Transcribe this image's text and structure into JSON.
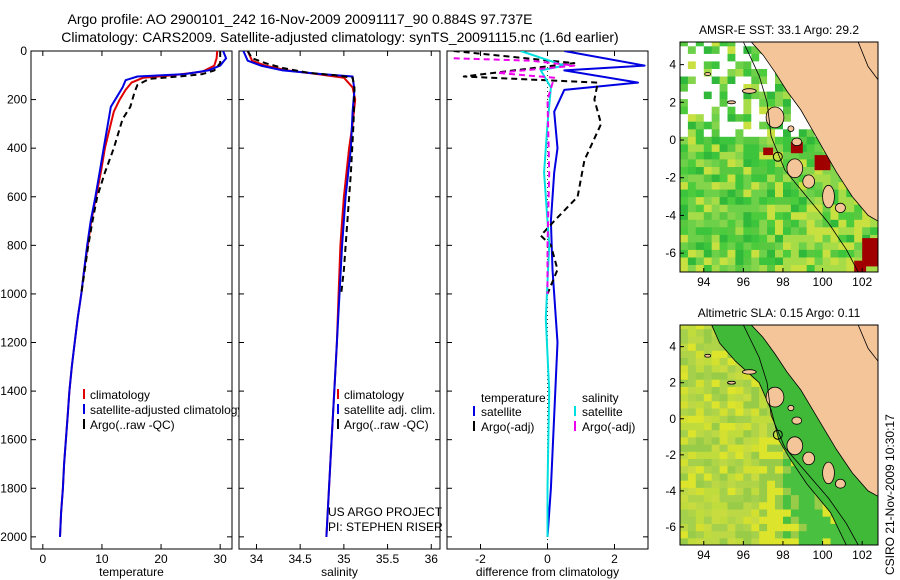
{
  "colors": {
    "clim": "#e00000",
    "sat": "#0000e0",
    "argo": "#000000",
    "sal_sat": "#00e0e0",
    "sal_argo": "#ee00ee",
    "land": "#f5c59a",
    "sst_green": "#3cc43c",
    "sst_yellow": "#d8e040",
    "sst_red": "#a00000",
    "sla_green": "#4ac040",
    "sla_yellow": "#d4e030"
  },
  "header": {
    "line1": "Argo profile: AO 2900101_242 16-Nov-2009 20091117_90 0.884S 97.737E",
    "line2": "Climatology: CARS2009. Satellite-adjusted climatology: synTS_20091115.nc (1.6d earlier)"
  },
  "side_label": "CSIRO 21-Nov-2009 10:30:17",
  "chart_data": [
    {
      "id": "temperature",
      "type": "line",
      "xlabel": "temperature",
      "ylabel": "",
      "xlim": [
        -2,
        32
      ],
      "ylim": [
        2050,
        0
      ],
      "xticks": [
        0,
        10,
        20,
        30
      ],
      "yticks": [
        0,
        200,
        400,
        600,
        800,
        1000,
        1200,
        1400,
        1600,
        1800,
        2000
      ],
      "legend": [
        "climatology",
        "satellite-adjusted climatology",
        "Argo(..raw -QC)"
      ],
      "series": [
        {
          "name": "climatology",
          "color": "#e00000",
          "dash": "",
          "points": [
            [
              29.5,
              0
            ],
            [
              29.4,
              30
            ],
            [
              29,
              60
            ],
            [
              27,
              85
            ],
            [
              22,
              100
            ],
            [
              17,
              110
            ],
            [
              15,
              130
            ],
            [
              14,
              160
            ],
            [
              13,
              200
            ],
            [
              12,
              250
            ],
            [
              11.5,
              300
            ],
            [
              10.5,
              400
            ],
            [
              9.8,
              500
            ],
            [
              9,
              600
            ],
            [
              8.2,
              700
            ],
            [
              7.6,
              800
            ],
            [
              7,
              900
            ],
            [
              6.5,
              1000
            ],
            [
              5.9,
              1100
            ],
            [
              5.4,
              1200
            ],
            [
              4.9,
              1300
            ],
            [
              4.5,
              1400
            ],
            [
              4.2,
              1500
            ],
            [
              3.9,
              1600
            ],
            [
              3.6,
              1700
            ],
            [
              3.4,
              1800
            ],
            [
              3.1,
              1900
            ],
            [
              2.9,
              2000
            ]
          ]
        },
        {
          "name": "satellite",
          "color": "#0000e0",
          "dash": "",
          "points": [
            [
              30.5,
              0
            ],
            [
              31,
              30
            ],
            [
              30,
              60
            ],
            [
              28,
              80
            ],
            [
              24,
              95
            ],
            [
              16,
              105
            ],
            [
              14,
              120
            ],
            [
              13.5,
              150
            ],
            [
              12.5,
              190
            ],
            [
              11.5,
              230
            ],
            [
              11,
              300
            ],
            [
              10.3,
              400
            ],
            [
              9.6,
              500
            ],
            [
              8.9,
              600
            ],
            [
              8.1,
              700
            ],
            [
              7.5,
              800
            ],
            [
              7,
              900
            ],
            [
              6.5,
              1000
            ],
            [
              5.9,
              1100
            ],
            [
              5.4,
              1200
            ],
            [
              4.9,
              1300
            ],
            [
              4.5,
              1400
            ],
            [
              4.2,
              1500
            ],
            [
              3.9,
              1600
            ],
            [
              3.6,
              1700
            ],
            [
              3.4,
              1800
            ],
            [
              3.1,
              1900
            ],
            [
              2.9,
              2000
            ]
          ]
        },
        {
          "name": "Argo",
          "color": "#000000",
          "dash": "6,4",
          "points": [
            [
              30,
              0
            ],
            [
              30,
              50
            ],
            [
              29,
              80
            ],
            [
              27,
              95
            ],
            [
              23,
              105
            ],
            [
              18,
              115
            ],
            [
              16,
              140
            ],
            [
              15.5,
              170
            ],
            [
              14.8,
              230
            ],
            [
              13.5,
              280
            ],
            [
              12,
              400
            ],
            [
              10.5,
              500
            ],
            [
              9.2,
              600
            ],
            [
              8.4,
              700
            ],
            [
              7.7,
              800
            ],
            [
              7.1,
              900
            ],
            [
              6.5,
              1000
            ]
          ]
        }
      ]
    },
    {
      "id": "salinity",
      "type": "line",
      "xlabel": "salinity",
      "ylabel": "",
      "xlim": [
        33.8,
        36.1
      ],
      "ylim": [
        2050,
        0
      ],
      "xticks": [
        34,
        34.5,
        35,
        35.5,
        36
      ],
      "xtick_labels": [
        "34",
        "34.5",
        "35",
        "35.5",
        "36"
      ],
      "legend": [
        "climatology",
        "satellite adj. clim.",
        "Argo(..raw -QC)"
      ],
      "annotation": [
        "US ARGO PROJECT",
        "PI: STEPHEN RISER"
      ],
      "series": [
        {
          "name": "climatology",
          "color": "#e00000",
          "dash": "",
          "points": [
            [
              33.9,
              0
            ],
            [
              33.95,
              40
            ],
            [
              34.1,
              60
            ],
            [
              34.35,
              80
            ],
            [
              34.7,
              95
            ],
            [
              35.0,
              110
            ],
            [
              35.1,
              150
            ],
            [
              35.13,
              200
            ],
            [
              35.1,
              300
            ],
            [
              35.06,
              400
            ],
            [
              35.03,
              500
            ],
            [
              35.0,
              600
            ],
            [
              34.98,
              700
            ],
            [
              34.96,
              800
            ],
            [
              34.94,
              1000
            ],
            [
              34.92,
              1200
            ],
            [
              34.89,
              1400
            ],
            [
              34.86,
              1600
            ],
            [
              34.83,
              1800
            ],
            [
              34.8,
              2000
            ]
          ]
        },
        {
          "name": "satellite",
          "color": "#0000e0",
          "dash": "",
          "points": [
            [
              33.85,
              0
            ],
            [
              33.9,
              40
            ],
            [
              34.05,
              60
            ],
            [
              34.3,
              80
            ],
            [
              34.75,
              95
            ],
            [
              35.1,
              105
            ],
            [
              35.12,
              160
            ],
            [
              35.1,
              250
            ],
            [
              35.08,
              400
            ],
            [
              35.02,
              600
            ],
            [
              34.98,
              800
            ],
            [
              34.95,
              1000
            ],
            [
              34.92,
              1200
            ],
            [
              34.89,
              1400
            ],
            [
              34.86,
              1600
            ],
            [
              34.83,
              1800
            ],
            [
              34.8,
              2000
            ]
          ]
        },
        {
          "name": "Argo",
          "color": "#000000",
          "dash": "6,4",
          "points": [
            [
              33.9,
              0
            ],
            [
              33.95,
              30
            ],
            [
              34.1,
              50
            ],
            [
              34.3,
              70
            ],
            [
              34.6,
              90
            ],
            [
              34.9,
              100
            ],
            [
              35.1,
              110
            ],
            [
              35.12,
              150
            ],
            [
              35.11,
              300
            ],
            [
              35.08,
              500
            ],
            [
              35.04,
              700
            ],
            [
              35.0,
              900
            ],
            [
              34.97,
              1000
            ]
          ]
        }
      ]
    },
    {
      "id": "difference",
      "type": "line",
      "xlabel": "difference from climatology",
      "ylabel": "",
      "xlim": [
        -3,
        3
      ],
      "ylim": [
        2050,
        0
      ],
      "xticks": [
        -2,
        0,
        2
      ],
      "legend_left_title": "temperature",
      "legend_left": [
        "satellite",
        "Argo(-adj)"
      ],
      "legend_right_title": "salinity",
      "legend_right": [
        "satellite",
        "Argo(-adj)"
      ],
      "series": [
        {
          "name": "temperature satellite",
          "color": "#0000e0",
          "dash": "",
          "points": [
            [
              0.5,
              0
            ],
            [
              2.9,
              60
            ],
            [
              0.5,
              80
            ],
            [
              2.7,
              130
            ],
            [
              0.5,
              160
            ],
            [
              0.2,
              250
            ],
            [
              0.3,
              400
            ],
            [
              0.2,
              500
            ],
            [
              0.1,
              700
            ],
            [
              0.15,
              900
            ],
            [
              0.3,
              1200
            ],
            [
              0.2,
              1500
            ],
            [
              0.1,
              1800
            ],
            [
              0.0,
              2000
            ]
          ]
        },
        {
          "name": "temperature Argo",
          "color": "#000000",
          "dash": "6,4",
          "points": [
            [
              -2.8,
              0
            ],
            [
              0.8,
              50
            ],
            [
              -2.5,
              105
            ],
            [
              1.5,
              130
            ],
            [
              1.4,
              200
            ],
            [
              1.6,
              300
            ],
            [
              1.1,
              450
            ],
            [
              0.9,
              600
            ],
            [
              0.2,
              700
            ],
            [
              -0.2,
              760
            ],
            [
              0.1,
              800
            ],
            [
              0.3,
              900
            ],
            [
              0.0,
              1000
            ]
          ]
        },
        {
          "name": "salinity satellite",
          "color": "#00e0e0",
          "dash": "",
          "points": [
            [
              -0.8,
              0
            ],
            [
              0.5,
              60
            ],
            [
              -0.2,
              80
            ],
            [
              0.1,
              150
            ],
            [
              0.0,
              300
            ],
            [
              -0.1,
              500
            ],
            [
              0.05,
              800
            ],
            [
              -0.05,
              1100
            ],
            [
              0.05,
              1400
            ],
            [
              0.0,
              1800
            ],
            [
              0.0,
              2000
            ]
          ]
        },
        {
          "name": "salinity Argo",
          "color": "#ee00ee",
          "dash": "6,4",
          "points": [
            [
              -2.8,
              30
            ],
            [
              -0.5,
              40
            ],
            [
              0.8,
              60
            ],
            [
              -1.5,
              90
            ],
            [
              0.2,
              110
            ],
            [
              0.0,
              200
            ],
            [
              0.05,
              500
            ],
            [
              0.0,
              800
            ],
            [
              0.0,
              1000
            ]
          ]
        }
      ]
    },
    {
      "id": "sst_map",
      "type": "heatmap",
      "title": "AMSR-E SST: 33.1  Argo: 29.2",
      "xlim": [
        92.8,
        102.8
      ],
      "ylim": [
        -7,
        5.2
      ],
      "xticks": [
        94,
        96,
        98,
        100,
        102
      ],
      "yticks": [
        -6,
        -4,
        -2,
        0,
        2,
        4
      ],
      "marker": [
        97.737,
        -0.884
      ]
    },
    {
      "id": "sla_map",
      "type": "heatmap",
      "title": "Altimetric SLA: 0.15  Argo: 0.11",
      "xlim": [
        92.8,
        102.8
      ],
      "ylim": [
        -7,
        5.2
      ],
      "xticks": [
        94,
        96,
        98,
        100,
        102
      ],
      "yticks": [
        -6,
        -4,
        -2,
        0,
        2,
        4
      ],
      "marker": [
        97.737,
        -0.884
      ]
    }
  ]
}
